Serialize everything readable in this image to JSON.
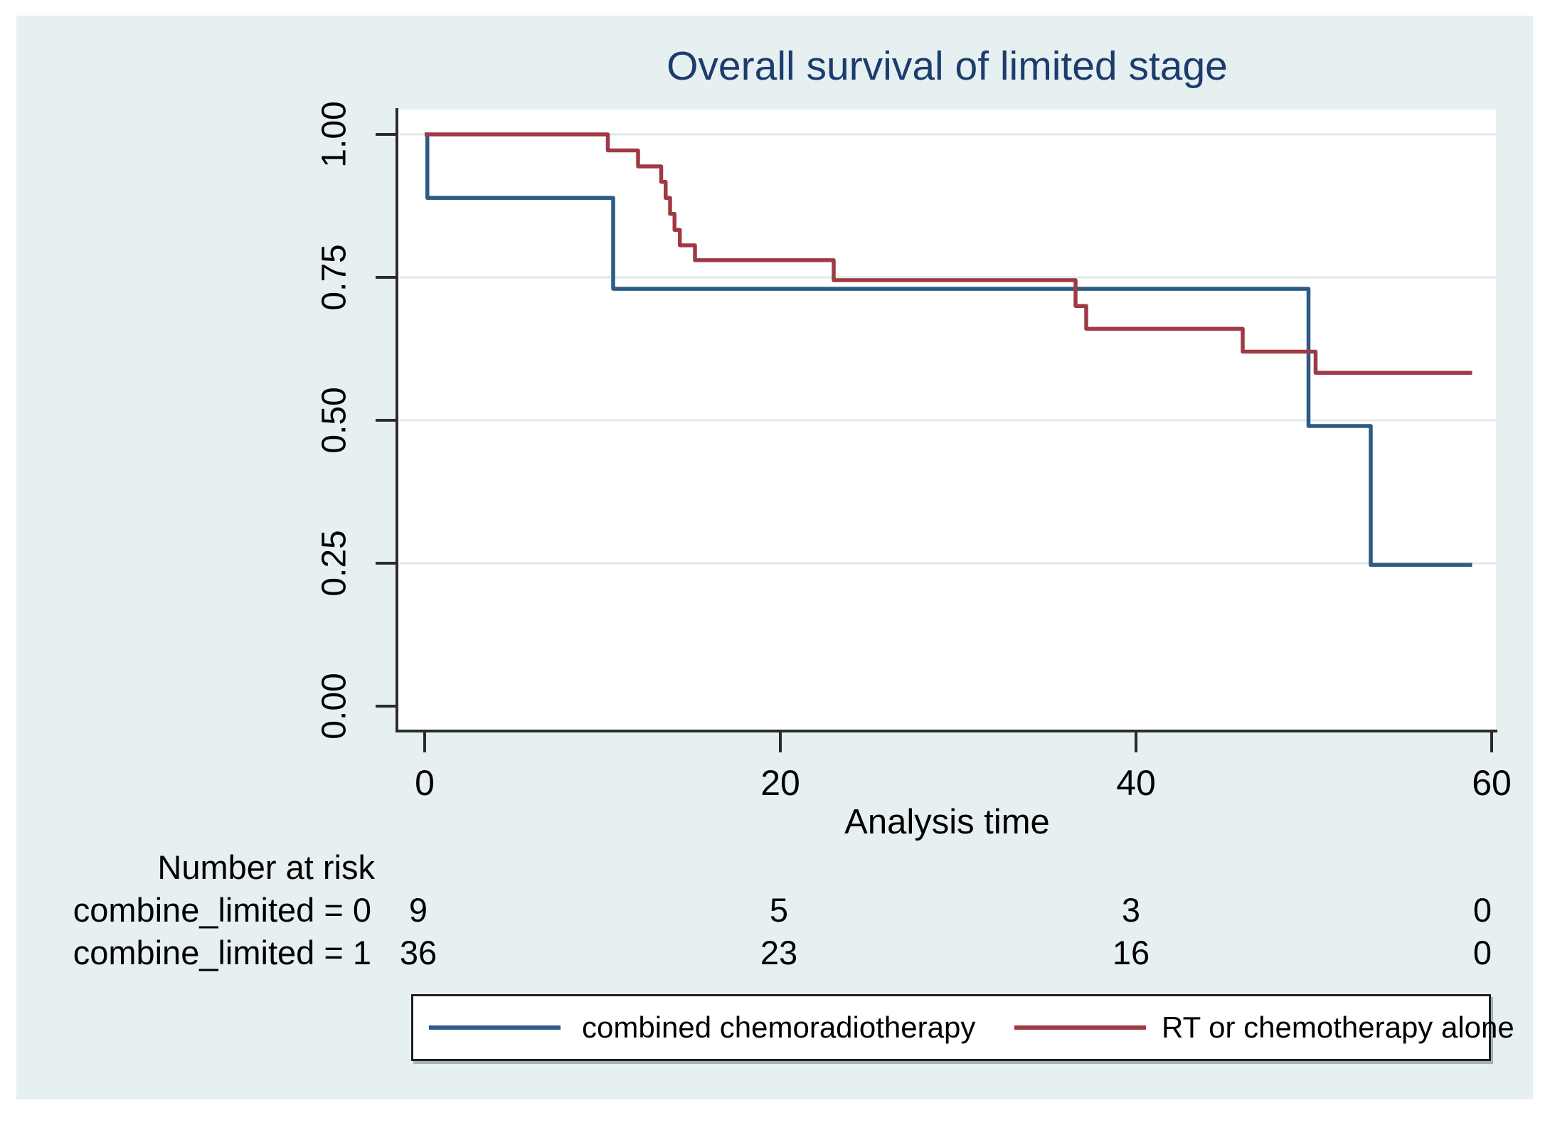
{
  "figure": {
    "title": "Overall survival of limited stage",
    "title_color": "#1c3c6e",
    "canvas_background": "#e7f0f1",
    "plot_background": "#ffffff",
    "gridline_color": "#dcebea",
    "axis_color": "#2b2b2b"
  },
  "chart_data": {
    "type": "line",
    "subtype": "kaplan-meier-step",
    "title": "Overall survival of limited stage",
    "xlabel": "Analysis time",
    "ylabel": "",
    "xlim": [
      0,
      60
    ],
    "ylim": [
      0.0,
      1.0
    ],
    "xticks": [
      0,
      20,
      40,
      60
    ],
    "yticks": [
      {
        "value": 0.0,
        "label": "0.00"
      },
      {
        "value": 0.25,
        "label": "0.25"
      },
      {
        "value": 0.5,
        "label": "0.50"
      },
      {
        "value": 0.75,
        "label": "0.75"
      },
      {
        "value": 1.0,
        "label": "1.00"
      }
    ],
    "grid": "horizontal, at 0.25/0.50/0.75/1.00",
    "legend_position": "bottom",
    "series": [
      {
        "name": "combined chemoradiotherapy",
        "color": "#2d5a86",
        "steps": [
          [
            0,
            1.0
          ],
          [
            0.15,
            0.889
          ],
          [
            10.6,
            0.73
          ],
          [
            49.7,
            0.49
          ],
          [
            53.2,
            0.247
          ]
        ],
        "end_t": 58.9
      },
      {
        "name": "RT or chemotherapy alone",
        "color": "#9f3a44",
        "steps": [
          [
            0,
            1.0
          ],
          [
            10.3,
            0.972
          ],
          [
            12.0,
            0.944
          ],
          [
            13.3,
            0.917
          ],
          [
            13.55,
            0.889
          ],
          [
            13.8,
            0.861
          ],
          [
            14.05,
            0.833
          ],
          [
            14.35,
            0.806
          ],
          [
            15.2,
            0.78
          ],
          [
            23.0,
            0.745
          ],
          [
            36.6,
            0.7
          ],
          [
            37.2,
            0.66
          ],
          [
            46.0,
            0.62
          ],
          [
            50.1,
            0.583
          ]
        ],
        "end_t": 58.9
      }
    ],
    "number_at_risk": {
      "title": "Number at risk",
      "rows": [
        {
          "label": "combine_limited = 0",
          "values": [
            "9",
            "5",
            "3",
            "0"
          ]
        },
        {
          "label": "combine_limited = 1",
          "values": [
            "36",
            "23",
            "16",
            "0"
          ]
        }
      ]
    }
  },
  "legend": {
    "items": [
      {
        "label": "combined chemoradiotherapy",
        "color": "#2d5a86"
      },
      {
        "label": "RT or chemotherapy alone",
        "color": "#9f3a44"
      }
    ]
  }
}
